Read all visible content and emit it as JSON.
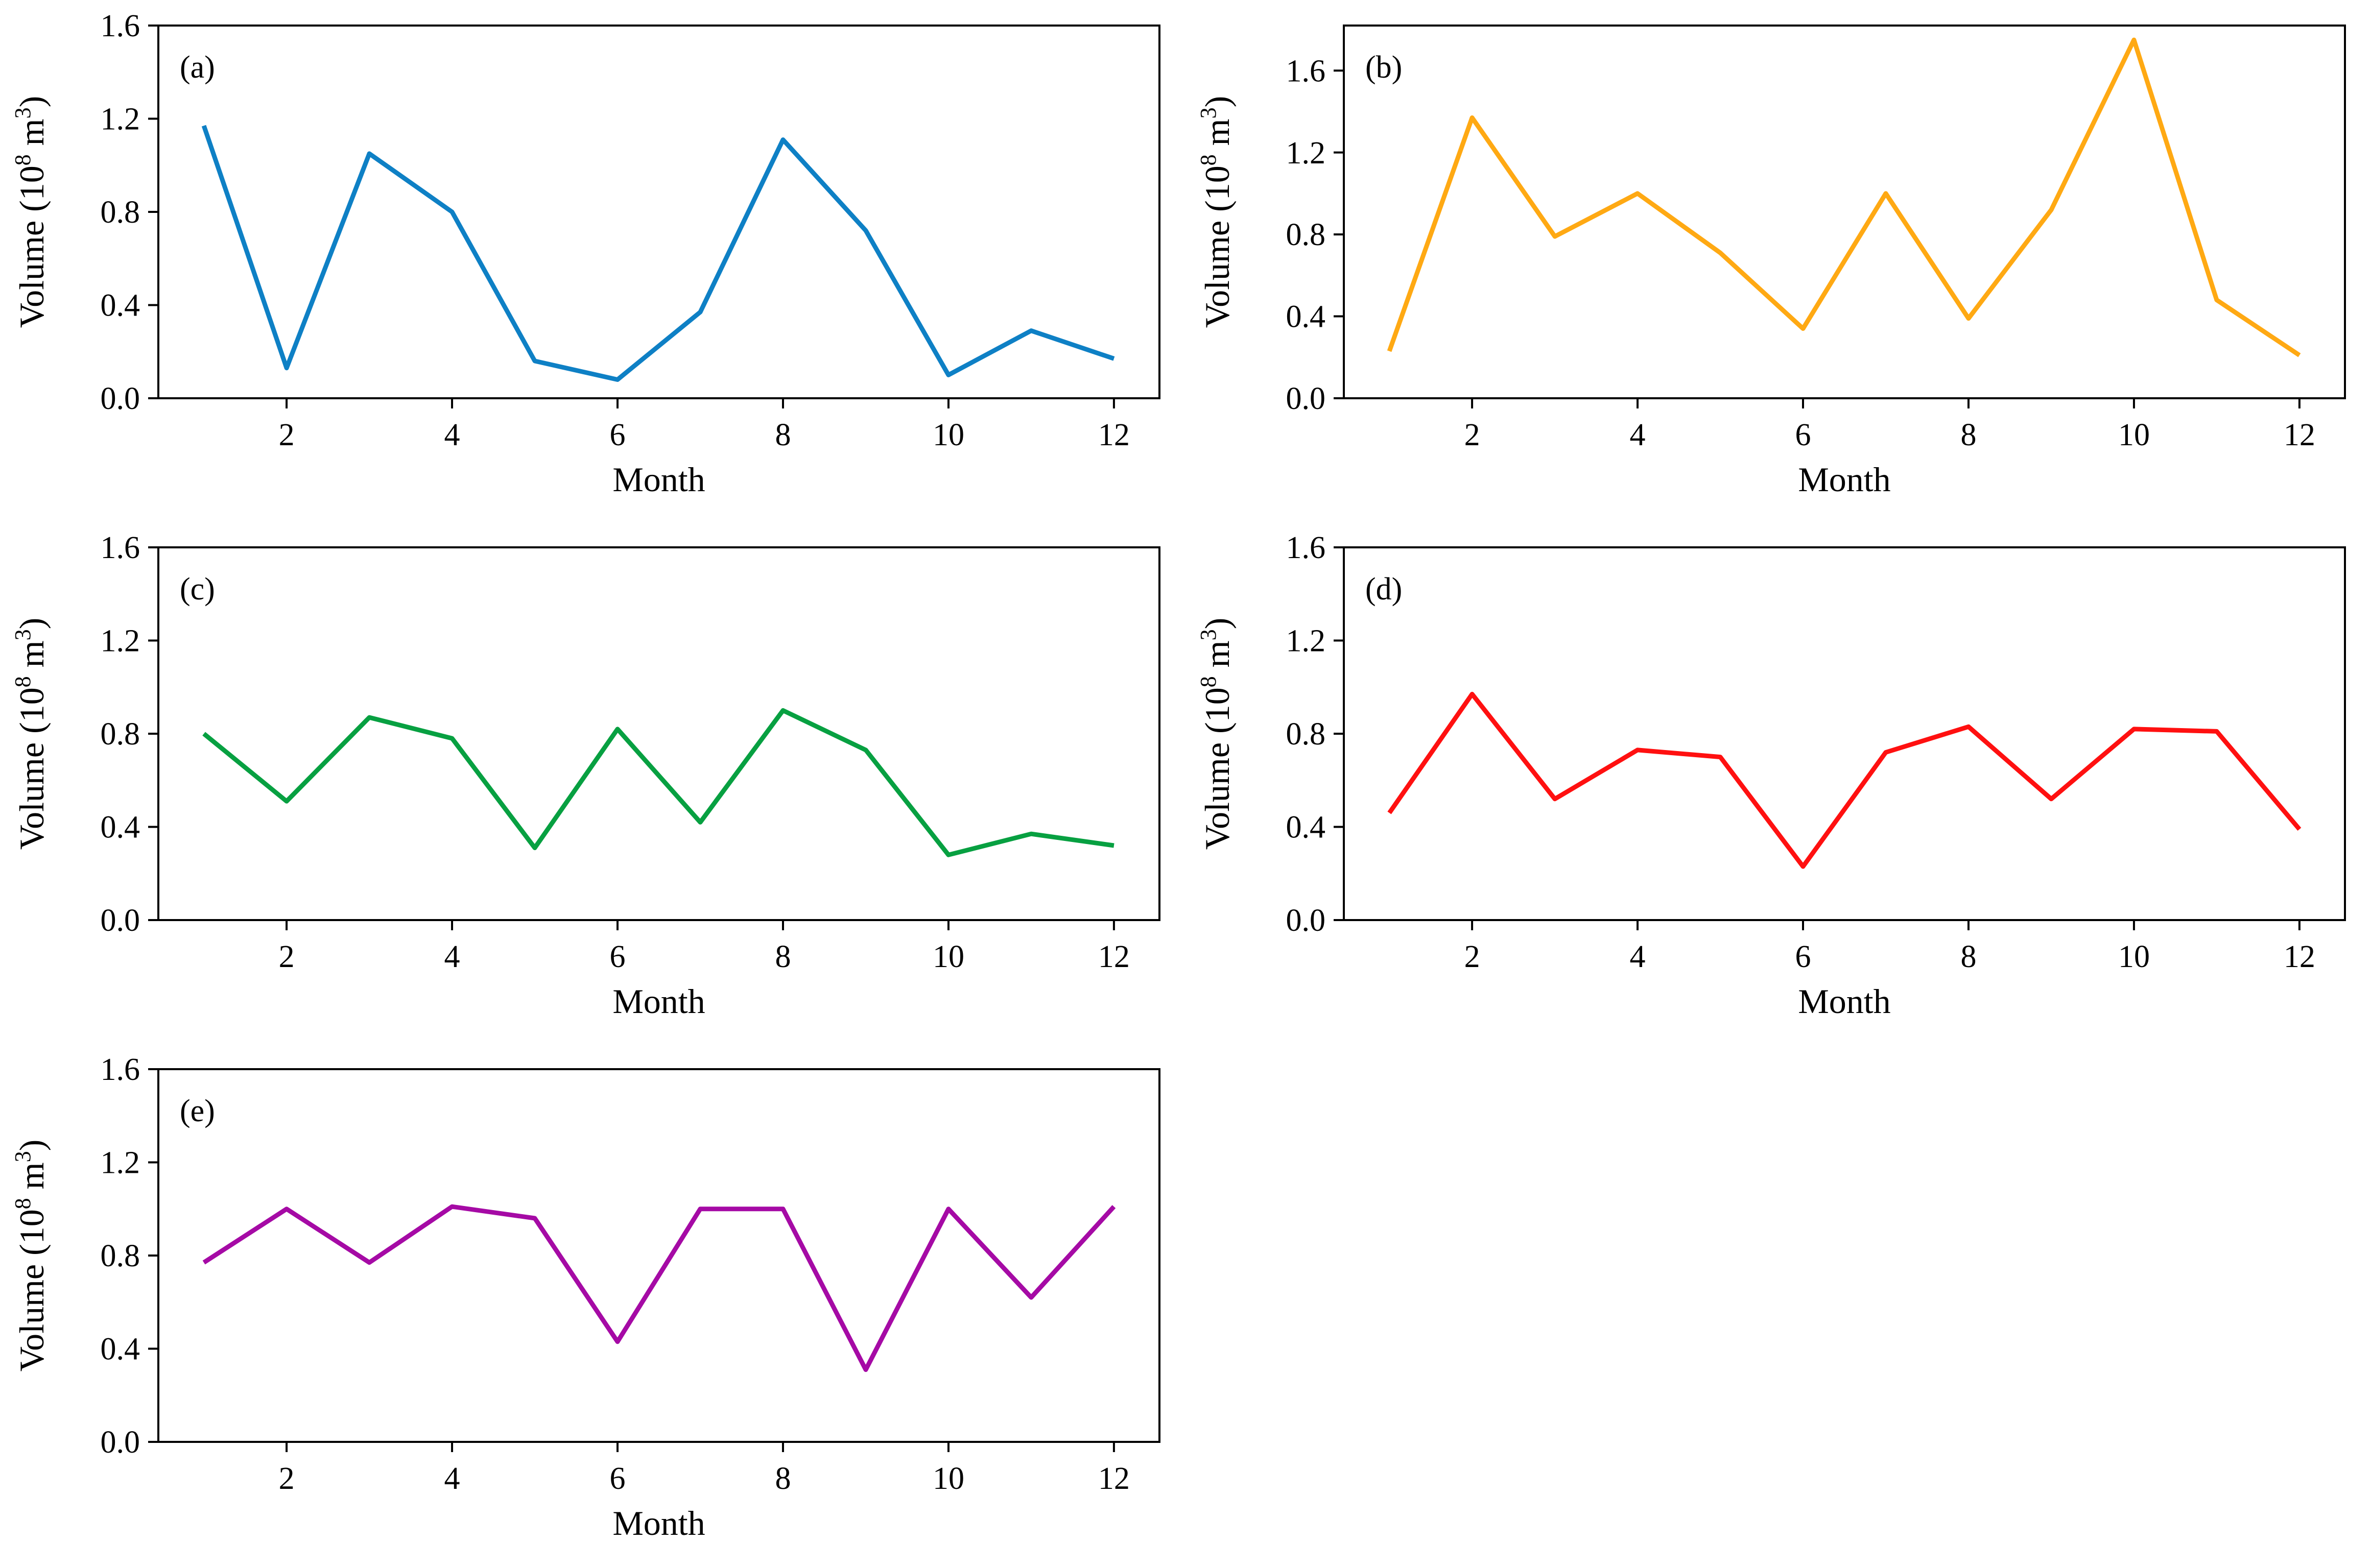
{
  "figure": {
    "xlabel": "Month",
    "ylabel_text": "Volume (10⁸ m³)",
    "ylabel_parts": {
      "prefix": "Volume (10",
      "sup1": "8",
      "mid": " m",
      "sup2": "3",
      "suffix": ")"
    },
    "background_color": "#ffffff",
    "spine_color": "#000000",
    "tick_label_color": "#000000"
  },
  "chart_data": [
    {
      "type": "line",
      "panel_label": "(a)",
      "color": "#0e80c5",
      "x": [
        1,
        2,
        3,
        4,
        5,
        6,
        7,
        8,
        9,
        10,
        11,
        12
      ],
      "values": [
        1.17,
        0.13,
        1.05,
        0.8,
        0.16,
        0.08,
        0.37,
        1.11,
        0.72,
        0.1,
        0.29,
        0.17
      ],
      "xlabel": "Month",
      "ylabel": "Volume (10^8 m^3)",
      "xlim": [
        0.45,
        12.55
      ],
      "ylim": [
        0,
        1.6
      ],
      "xticks": [
        2,
        4,
        6,
        8,
        10,
        12
      ],
      "yticks": [
        0.0,
        0.4,
        0.8,
        1.2,
        1.6
      ],
      "grid": false,
      "legend": "none"
    },
    {
      "type": "line",
      "panel_label": "(b)",
      "color": "#ffa913",
      "x": [
        1,
        2,
        3,
        4,
        5,
        6,
        7,
        8,
        9,
        10,
        11,
        12
      ],
      "values": [
        0.23,
        1.37,
        0.79,
        1.0,
        0.71,
        0.34,
        1.0,
        0.39,
        0.92,
        1.75,
        0.48,
        0.21
      ],
      "xlabel": "Month",
      "ylabel": "Volume (10^8 m^3)",
      "xlim": [
        0.45,
        12.55
      ],
      "ylim": [
        0,
        1.82
      ],
      "xticks": [
        2,
        4,
        6,
        8,
        10,
        12
      ],
      "yticks": [
        0.0,
        0.4,
        0.8,
        1.2,
        1.6
      ],
      "grid": false,
      "legend": "none"
    },
    {
      "type": "line",
      "panel_label": "(c)",
      "color": "#07a041",
      "x": [
        1,
        2,
        3,
        4,
        5,
        6,
        7,
        8,
        9,
        10,
        11,
        12
      ],
      "values": [
        0.8,
        0.51,
        0.87,
        0.78,
        0.31,
        0.82,
        0.42,
        0.9,
        0.73,
        0.28,
        0.37,
        0.32
      ],
      "xlabel": "Month",
      "ylabel": "Volume (10^8 m^3)",
      "xlim": [
        0.45,
        12.55
      ],
      "ylim": [
        0,
        1.6
      ],
      "xticks": [
        2,
        4,
        6,
        8,
        10,
        12
      ],
      "yticks": [
        0.0,
        0.4,
        0.8,
        1.2,
        1.6
      ],
      "grid": false,
      "legend": "none"
    },
    {
      "type": "line",
      "panel_label": "(d)",
      "color": "#ff1010",
      "x": [
        1,
        2,
        3,
        4,
        5,
        6,
        7,
        8,
        9,
        10,
        11,
        12
      ],
      "values": [
        0.46,
        0.97,
        0.52,
        0.73,
        0.7,
        0.23,
        0.72,
        0.83,
        0.52,
        0.82,
        0.81,
        0.39
      ],
      "xlabel": "Month",
      "ylabel": "Volume (10^8 m^3)",
      "xlim": [
        0.45,
        12.55
      ],
      "ylim": [
        0,
        1.6
      ],
      "xticks": [
        2,
        4,
        6,
        8,
        10,
        12
      ],
      "yticks": [
        0.0,
        0.4,
        0.8,
        1.2,
        1.6
      ],
      "grid": false,
      "legend": "none"
    },
    {
      "type": "line",
      "panel_label": "(e)",
      "color": "#a50aa5",
      "x": [
        1,
        2,
        3,
        4,
        5,
        6,
        7,
        8,
        9,
        10,
        11,
        12
      ],
      "values": [
        0.77,
        1.0,
        0.77,
        1.01,
        0.96,
        0.43,
        1.0,
        1.0,
        0.31,
        1.0,
        0.62,
        1.01
      ],
      "xlabel": "Month",
      "ylabel": "Volume (10^8 m^3)",
      "xlim": [
        0.45,
        12.55
      ],
      "ylim": [
        0,
        1.6
      ],
      "xticks": [
        2,
        4,
        6,
        8,
        10,
        12
      ],
      "yticks": [
        0.0,
        0.4,
        0.8,
        1.2,
        1.6
      ],
      "grid": false,
      "legend": "none"
    }
  ]
}
